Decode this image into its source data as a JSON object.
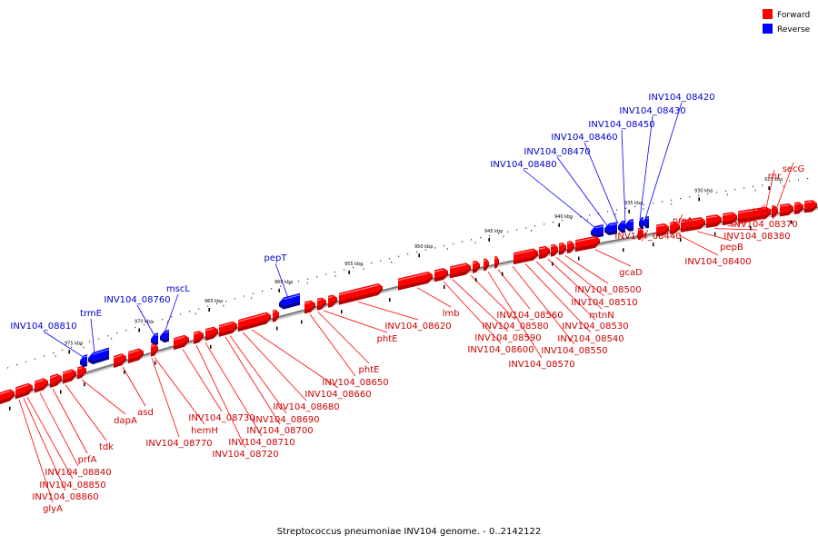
{
  "caption": "Streptococcus pneumoniae INV104 genome. - 0..2142122",
  "legend": [
    {
      "label": "Forward",
      "color": "#ff0000"
    },
    {
      "label": "Reverse",
      "color": "#0000ff"
    }
  ],
  "colors": {
    "forward": "#ff0000",
    "forward_dark": "#b80000",
    "forward_light": "#ff9a9a",
    "reverse": "#0000ff",
    "reverse_dark": "#00009a",
    "reverse_light": "#8a8aff",
    "backbone": "#8a8a8a"
  },
  "ticks": [
    {
      "label": "925 kbp",
      "kbp": 925
    },
    {
      "label": "930 kbp",
      "kbp": 930
    },
    {
      "label": "935 kbp",
      "kbp": 935
    },
    {
      "label": "940 kbp",
      "kbp": 940
    },
    {
      "label": "945 kbp",
      "kbp": 945
    },
    {
      "label": "950 kbp",
      "kbp": 950
    },
    {
      "label": "955 kbp",
      "kbp": 955
    },
    {
      "label": "960 kbp",
      "kbp": 960
    },
    {
      "label": "965 kbp",
      "kbp": 965
    },
    {
      "label": "970 kbp",
      "kbp": 970
    },
    {
      "label": "975 kbp",
      "kbp": 975
    }
  ],
  "forward_labels": [
    "glyA",
    "INV104_08860",
    "INV104_08850",
    "INV104_08840",
    "prfA",
    "tdk",
    "dapA",
    "asd",
    "INV104_08770",
    "hemH",
    "INV104_08730",
    "INV104_08720",
    "INV104_08710",
    "INV104_08700",
    "INV104_08690",
    "INV104_08680",
    "INV104_08660",
    "INV104_08650",
    "phtE",
    "phtE",
    "INV104_08620",
    "lmb",
    "INV104_08600",
    "INV104_08590",
    "INV104_08580",
    "INV104_08570",
    "INV104_08560",
    "INV104_08550",
    "INV104_08540",
    "INV104_08530",
    "mtnN",
    "INV104_08510",
    "INV104_08500",
    "gcaD",
    "INV104_08440",
    "prsA",
    "INV104_08400",
    "pepB",
    "INV104_08380",
    "INV104_08370",
    "smpB",
    "rnr",
    "secG"
  ],
  "reverse_labels": [
    "INV104_08810",
    "trmE",
    "INV104_08760",
    "mscL",
    "pepT",
    "INV104_08480",
    "INV104_08470",
    "INV104_08460",
    "INV104_08450",
    "INV104_08430",
    "INV104_08420"
  ]
}
